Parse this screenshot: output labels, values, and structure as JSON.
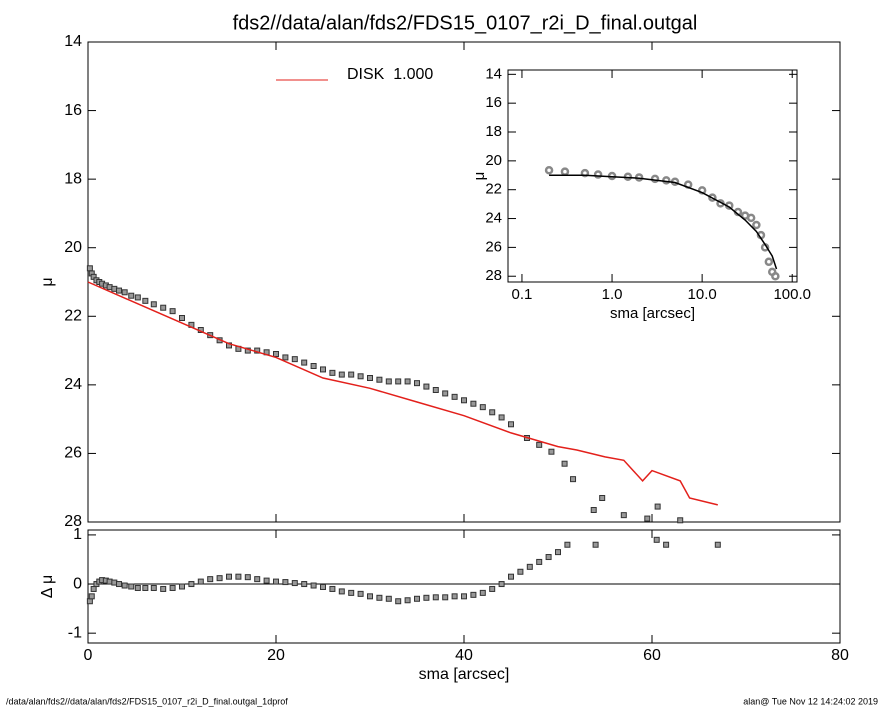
{
  "chart_data": [
    {
      "type": "scatter",
      "title": "fds2//data/alan/fds2/FDS15_0107_r2i_D_final.outgal",
      "ylabel": "μ",
      "xlim": [
        0,
        80
      ],
      "ylim": [
        14,
        28
      ],
      "yticks": [
        14,
        16,
        18,
        20,
        22,
        24,
        26,
        28
      ],
      "series": [
        {
          "type": "scatter",
          "color": "#999999",
          "x": [
            0.2,
            0.4,
            0.6,
            0.9,
            1.2,
            1.5,
            1.9,
            2.3,
            2.8,
            3.3,
            3.9,
            4.6,
            5.3,
            6.1,
            7.0,
            8.0,
            9.0,
            10,
            11,
            12,
            13,
            14,
            15,
            16,
            17,
            18,
            19,
            20,
            21,
            22,
            23,
            24,
            25,
            26,
            27,
            28,
            29,
            30,
            31,
            32,
            33,
            34,
            35,
            36,
            37,
            38,
            39,
            40,
            41,
            42,
            43,
            44,
            45,
            46.7,
            48,
            49.3,
            50.7,
            51.6,
            53.8,
            54.7,
            57.0,
            59.5,
            60.6,
            63.0
          ],
          "values": [
            20.6,
            20.75,
            20.85,
            20.95,
            21.0,
            21.05,
            21.1,
            21.15,
            21.2,
            21.25,
            21.3,
            21.4,
            21.45,
            21.55,
            21.65,
            21.75,
            21.85,
            22.05,
            22.25,
            22.4,
            22.55,
            22.7,
            22.85,
            22.95,
            23.0,
            23.0,
            23.05,
            23.1,
            23.2,
            23.25,
            23.35,
            23.45,
            23.55,
            23.65,
            23.7,
            23.7,
            23.75,
            23.8,
            23.85,
            23.9,
            23.9,
            23.9,
            23.95,
            24.05,
            24.15,
            24.25,
            24.35,
            24.45,
            24.55,
            24.65,
            24.8,
            24.95,
            25.15,
            25.55,
            25.75,
            25.95,
            26.3,
            26.75,
            27.65,
            27.3,
            27.8,
            27.9,
            27.55,
            27.95
          ]
        },
        {
          "type": "line",
          "name": "DISK  1.000",
          "color": "#e3201b",
          "x": [
            0,
            5,
            10,
            15,
            20,
            25,
            30,
            35,
            40,
            45,
            50,
            52,
            55,
            57,
            58,
            59,
            60,
            63,
            64,
            67
          ],
          "values": [
            21.0,
            21.6,
            22.2,
            22.8,
            23.2,
            23.8,
            24.1,
            24.5,
            24.9,
            25.4,
            25.8,
            25.9,
            26.1,
            26.2,
            26.5,
            26.8,
            26.5,
            26.8,
            27.3,
            27.5
          ]
        }
      ]
    },
    {
      "type": "scatter",
      "xlabel": "sma [arcsec]",
      "ylabel": "Δ μ",
      "xlim": [
        0,
        80
      ],
      "xticks": [
        0,
        20,
        40,
        60,
        80
      ],
      "ylim": [
        1.1,
        -1.2
      ],
      "yticks": [
        1,
        0,
        -1
      ],
      "hline": 0,
      "series": [
        {
          "type": "scatter",
          "color": "#999999",
          "x": [
            0.2,
            0.4,
            0.6,
            0.9,
            1.2,
            1.5,
            1.9,
            2.3,
            2.8,
            3.3,
            3.9,
            4.6,
            5.3,
            6.1,
            7,
            8,
            9,
            10,
            11,
            12,
            13,
            14,
            15,
            16,
            17,
            18,
            19,
            20,
            21,
            22,
            23,
            24,
            25,
            26,
            27,
            28,
            29,
            30,
            31,
            32,
            33,
            34,
            35,
            36,
            37,
            38,
            39,
            40,
            41,
            42,
            43,
            44,
            45,
            46,
            47,
            48,
            49,
            50,
            51,
            54,
            60.5,
            61.5,
            67
          ],
          "values": [
            -0.35,
            -0.25,
            -0.1,
            0.0,
            0.05,
            0.08,
            0.07,
            0.05,
            0.03,
            0.0,
            -0.03,
            -0.05,
            -0.08,
            -0.08,
            -0.08,
            -0.1,
            -0.08,
            -0.05,
            0.0,
            0.05,
            0.1,
            0.12,
            0.15,
            0.15,
            0.14,
            0.1,
            0.07,
            0.05,
            0.04,
            0.02,
            0.0,
            -0.03,
            -0.06,
            -0.1,
            -0.15,
            -0.18,
            -0.2,
            -0.25,
            -0.28,
            -0.3,
            -0.35,
            -0.33,
            -0.3,
            -0.28,
            -0.27,
            -0.27,
            -0.25,
            -0.25,
            -0.22,
            -0.18,
            -0.1,
            0.0,
            0.15,
            0.25,
            0.35,
            0.45,
            0.55,
            0.65,
            0.8,
            0.8,
            0.9,
            0.8,
            0.8
          ]
        }
      ]
    },
    {
      "type": "scatter",
      "xlabel": "sma [arcsec]",
      "ylabel": "μ",
      "xlog": true,
      "xlim": [
        0.07,
        113
      ],
      "xticks": [
        0.1,
        {
          "value": 1,
          "label": "1.0"
        },
        {
          "value": 10,
          "label": "10.0"
        },
        {
          "value": 100,
          "label": "100.0"
        }
      ],
      "ylim": [
        13.7,
        28.4
      ],
      "yticks": [
        14,
        16,
        18,
        20,
        22,
        24,
        26,
        28
      ],
      "series": [
        {
          "type": "scatter",
          "color": "#888888",
          "x": [
            0.2,
            0.3,
            0.5,
            0.7,
            1,
            1.5,
            2,
            3,
            4,
            5,
            7,
            10,
            13,
            16,
            20,
            25,
            30,
            35,
            40,
            45,
            50,
            55,
            60,
            65
          ],
          "values": [
            20.65,
            20.75,
            20.85,
            20.95,
            21.05,
            21.1,
            21.15,
            21.25,
            21.35,
            21.45,
            21.65,
            22.05,
            22.55,
            22.95,
            23.1,
            23.55,
            23.8,
            23.95,
            24.45,
            25.15,
            26.0,
            27.0,
            27.7,
            28.0
          ]
        },
        {
          "type": "line",
          "color": "#000000",
          "x": [
            0.2,
            0.5,
            1,
            2,
            5,
            10,
            20,
            30,
            40,
            50,
            60,
            67
          ],
          "values": [
            21.0,
            21.0,
            21.1,
            21.2,
            21.5,
            22.2,
            23.2,
            24.1,
            24.9,
            25.8,
            26.6,
            27.5
          ]
        }
      ]
    }
  ],
  "footer": {
    "left": "/data/alan/fds2//data/alan/fds2/FDS15_0107_r2i_D_final.outgal_1dprof",
    "right": "alan@  Tue Nov 12 14:24:02 2019"
  }
}
